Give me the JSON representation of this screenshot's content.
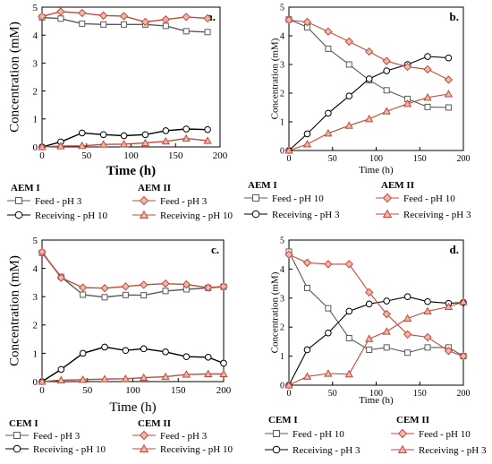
{
  "colors": {
    "feed_I": "#5a5a5a",
    "receiving_I": "#000000",
    "feed_II": "#c04a3a",
    "receiving_II": "#c04a3a",
    "marker_fill_II": "#f2b6a9",
    "marker_fill_I": "#ffffff"
  },
  "chart_data": [
    {
      "type": "line",
      "panel_label": "a.",
      "xlabel": "Time (h)",
      "ylabel": "Concentration (mM)",
      "xlim": [
        0,
        200
      ],
      "ylim": [
        0,
        5
      ],
      "xticks": [
        0,
        50,
        100,
        150,
        200
      ],
      "yticks": [
        0,
        1,
        2,
        3,
        4,
        5
      ],
      "grid": false,
      "legend_position": "below",
      "legend_groups": [
        "AEM I",
        "AEM II"
      ],
      "series": [
        {
          "name": "Feed - pH 3",
          "group": "AEM I",
          "marker": "square",
          "x": [
            0,
            21,
            45,
            69,
            92,
            116,
            139,
            162,
            186
          ],
          "y": [
            4.63,
            4.59,
            4.41,
            4.38,
            4.38,
            4.38,
            4.33,
            4.14,
            4.11
          ]
        },
        {
          "name": "Receiving - pH 10",
          "group": "AEM I",
          "marker": "circle",
          "x": [
            0,
            21,
            45,
            69,
            92,
            116,
            139,
            162,
            186
          ],
          "y": [
            0.0,
            0.18,
            0.5,
            0.44,
            0.4,
            0.44,
            0.58,
            0.64,
            0.62
          ]
        },
        {
          "name": "Feed - pH 3",
          "group": "AEM II",
          "marker": "diamond",
          "x": [
            0,
            21,
            45,
            69,
            92,
            116,
            139,
            162,
            186
          ],
          "y": [
            4.67,
            4.84,
            4.79,
            4.7,
            4.68,
            4.47,
            4.56,
            4.65,
            4.6
          ]
        },
        {
          "name": "Receiving - pH 10",
          "group": "AEM II",
          "marker": "triangle",
          "x": [
            0,
            21,
            45,
            69,
            92,
            116,
            139,
            162,
            186
          ],
          "y": [
            0.0,
            0.03,
            0.04,
            0.09,
            0.1,
            0.14,
            0.2,
            0.3,
            0.22
          ]
        }
      ]
    },
    {
      "type": "line",
      "panel_label": "b.",
      "xlabel": "Time (h)",
      "ylabel": "Concentration (mM)",
      "xlim": [
        0,
        200
      ],
      "ylim": [
        0,
        5
      ],
      "xticks": [
        0,
        50,
        100,
        150,
        200
      ],
      "yticks": [
        0,
        1,
        2,
        3,
        4,
        5
      ],
      "grid": false,
      "legend_position": "below",
      "legend_groups": [
        "AEM I",
        "AEM II"
      ],
      "series": [
        {
          "name": "Feed - pH 10",
          "group": "AEM I",
          "marker": "square",
          "x": [
            0,
            21,
            45,
            69,
            92,
            112,
            136,
            159,
            183
          ],
          "y": [
            4.57,
            4.3,
            3.55,
            3.0,
            2.45,
            2.1,
            1.8,
            1.52,
            1.5
          ]
        },
        {
          "name": "Receiving - pH 3",
          "group": "AEM I",
          "marker": "circle",
          "x": [
            0,
            21,
            45,
            69,
            92,
            112,
            136,
            159,
            183
          ],
          "y": [
            0.0,
            0.58,
            1.3,
            1.9,
            2.5,
            2.78,
            3.0,
            3.28,
            3.23
          ]
        },
        {
          "name": "Feed - pH 10",
          "group": "AEM II",
          "marker": "diamond",
          "x": [
            0,
            21,
            45,
            69,
            92,
            112,
            136,
            159,
            183
          ],
          "y": [
            4.55,
            4.48,
            4.15,
            3.8,
            3.45,
            3.12,
            2.92,
            2.83,
            2.47
          ]
        },
        {
          "name": "Receiving - pH 3",
          "group": "AEM II",
          "marker": "triangle",
          "x": [
            0,
            21,
            45,
            69,
            92,
            112,
            136,
            159,
            183
          ],
          "y": [
            0.0,
            0.22,
            0.6,
            0.87,
            1.1,
            1.37,
            1.63,
            1.85,
            1.97
          ]
        }
      ]
    },
    {
      "type": "line",
      "panel_label": "c.",
      "xlabel": "Time (h)",
      "ylabel": "Concentration (mM)",
      "xlim": [
        0,
        200
      ],
      "ylim": [
        0,
        5
      ],
      "xticks": [
        0,
        50,
        100,
        150,
        200
      ],
      "yticks": [
        0,
        1,
        2,
        3,
        4,
        5
      ],
      "grid": false,
      "legend_position": "below",
      "legend_groups": [
        "CEM I",
        "CEM II"
      ],
      "series": [
        {
          "name": "Feed - pH 3",
          "group": "CEM I",
          "marker": "square",
          "x": [
            0,
            21,
            45,
            69,
            92,
            112,
            136,
            159,
            183,
            200
          ],
          "y": [
            4.55,
            3.7,
            3.07,
            2.98,
            3.06,
            3.05,
            3.2,
            3.26,
            3.31,
            3.35
          ]
        },
        {
          "name": "Receiving - pH 10",
          "group": "CEM I",
          "marker": "circle",
          "x": [
            0,
            21,
            45,
            69,
            92,
            112,
            136,
            159,
            183,
            200
          ],
          "y": [
            0.0,
            0.43,
            1.0,
            1.22,
            1.1,
            1.16,
            1.05,
            0.88,
            0.86,
            0.65
          ]
        },
        {
          "name": "Feed - pH 3",
          "group": "CEM II",
          "marker": "diamond",
          "x": [
            0,
            21,
            45,
            69,
            92,
            112,
            136,
            159,
            183,
            200
          ],
          "y": [
            4.58,
            3.67,
            3.32,
            3.3,
            3.36,
            3.42,
            3.46,
            3.43,
            3.32,
            3.36
          ]
        },
        {
          "name": "Receiving - pH 10",
          "group": "CEM II",
          "marker": "triangle",
          "x": [
            0,
            21,
            45,
            69,
            92,
            112,
            136,
            159,
            183,
            200
          ],
          "y": [
            0.0,
            0.05,
            0.07,
            0.09,
            0.1,
            0.14,
            0.17,
            0.25,
            0.27,
            0.27
          ]
        }
      ]
    },
    {
      "type": "line",
      "panel_label": "d.",
      "xlabel": "Time (h)",
      "ylabel": "Concentration (mM)",
      "xlim": [
        0,
        200
      ],
      "ylim": [
        0,
        5
      ],
      "xticks": [
        0,
        50,
        100,
        150,
        200
      ],
      "yticks": [
        0,
        1,
        2,
        3,
        4,
        5
      ],
      "grid": false,
      "legend_position": "below",
      "legend_groups": [
        "CEM I",
        "CEM II"
      ],
      "series": [
        {
          "name": "Feed - pH 10",
          "group": "CEM I",
          "marker": "square",
          "x": [
            0,
            21,
            45,
            69,
            92,
            112,
            136,
            159,
            183,
            200
          ],
          "y": [
            4.6,
            3.35,
            2.65,
            1.62,
            1.22,
            1.3,
            1.12,
            1.3,
            1.3,
            1.0
          ]
        },
        {
          "name": "Receiving - pH 3",
          "group": "CEM I",
          "marker": "circle",
          "x": [
            0,
            21,
            45,
            69,
            92,
            112,
            136,
            159,
            183,
            200
          ],
          "y": [
            0.0,
            1.22,
            1.8,
            2.55,
            2.8,
            2.9,
            3.05,
            2.88,
            2.82,
            2.85
          ]
        },
        {
          "name": "Feed - pH 10",
          "group": "CEM II",
          "marker": "diamond",
          "x": [
            0,
            21,
            45,
            69,
            92,
            112,
            136,
            159,
            183,
            200
          ],
          "y": [
            4.5,
            4.22,
            4.17,
            4.17,
            3.2,
            2.45,
            1.75,
            1.65,
            1.18,
            1.0
          ]
        },
        {
          "name": "Receiving - pH 3",
          "group": "CEM II",
          "marker": "triangle",
          "x": [
            0,
            21,
            45,
            69,
            92,
            112,
            136,
            159,
            183,
            200
          ],
          "y": [
            0.0,
            0.3,
            0.4,
            0.38,
            1.6,
            1.85,
            2.3,
            2.55,
            2.7,
            2.87
          ]
        }
      ]
    }
  ]
}
